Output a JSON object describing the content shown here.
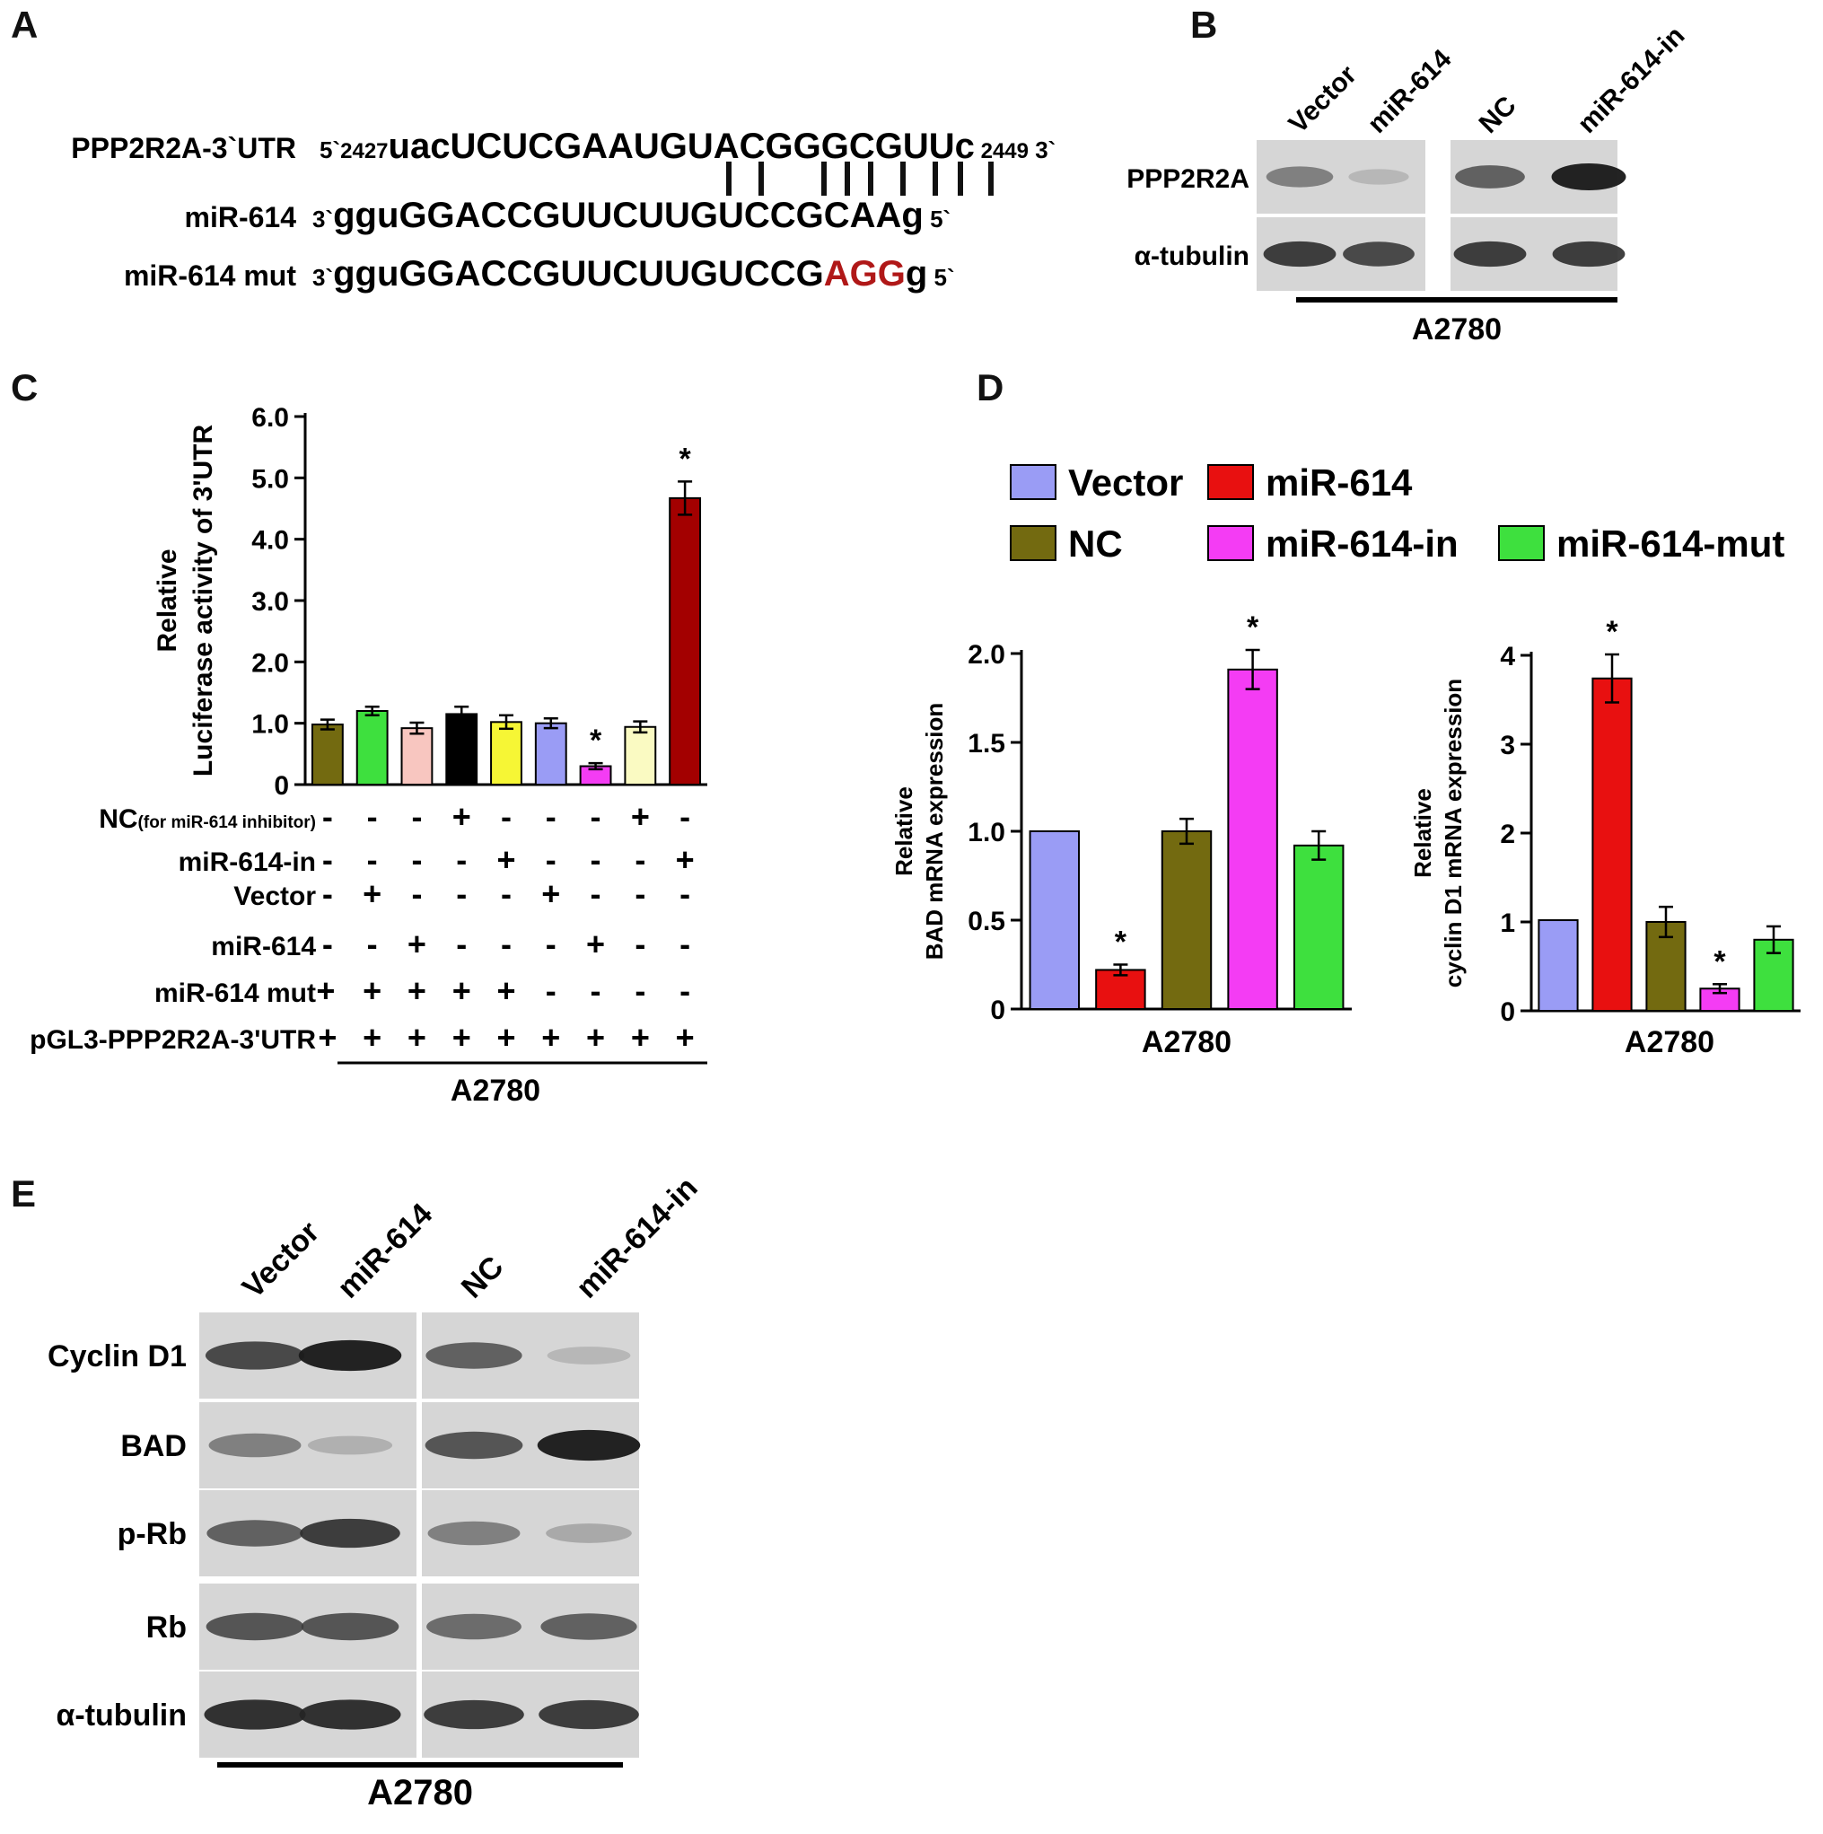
{
  "panels": {
    "A": {
      "label": "A",
      "rows": [
        {
          "name": "PPP2R2A-3`UTR",
          "prime_left": "5`",
          "pos_start": "2427",
          "seq_lower_prefix": "uac",
          "seq_upper": "UCUCGAAUGUACGGGCGUU",
          "seq_lower_suffix": "c",
          "pos_end": "2449",
          "prime_right": "3`"
        },
        {
          "name": "miR-614",
          "prime_left": "3`",
          "seq_lower_prefix": "ggu",
          "seq_upper": "GGACCGUUCUUGUCCGCAA",
          "seq_lower_suffix": "g",
          "prime_right": "5`"
        },
        {
          "name": "miR-614 mut",
          "prime_left": "3`",
          "seq_lower_prefix": "ggu",
          "seq_upper": "GGACCGUUCUUGUCCG",
          "seq_mut": "AGG",
          "seq_lower_suffix": "g",
          "prime_right": "5`"
        }
      ],
      "mut_color": "#b01818",
      "pair_count": 9
    },
    "B": {
      "label": "B",
      "lanes": [
        "Vector",
        "miR-614",
        "NC",
        "miR-614-in"
      ],
      "blots": [
        {
          "name": "PPP2R2A",
          "band_intensity": [
            0.55,
            0.2,
            0.7,
            0.95
          ]
        },
        {
          "name": "α-tubulin",
          "band_intensity": [
            0.85,
            0.8,
            0.85,
            0.85
          ]
        }
      ],
      "cell_line": "A2780"
    },
    "C": {
      "label": "C"
    },
    "D": {
      "label": "D"
    },
    "E": {
      "label": "E",
      "lanes": [
        "Vector",
        "miR-614",
        "NC",
        "miR-614-in"
      ],
      "blots": [
        {
          "name": "Cyclin D1",
          "band_intensity": [
            0.8,
            0.95,
            0.7,
            0.2
          ]
        },
        {
          "name": "BAD",
          "band_intensity": [
            0.55,
            0.25,
            0.75,
            0.95
          ]
        },
        {
          "name": "p-Rb",
          "band_intensity": [
            0.7,
            0.85,
            0.55,
            0.3
          ]
        },
        {
          "name": "Rb",
          "band_intensity": [
            0.75,
            0.75,
            0.65,
            0.7
          ]
        },
        {
          "name": "α-tubulin",
          "band_intensity": [
            0.9,
            0.9,
            0.85,
            0.85
          ]
        }
      ],
      "cell_line": "A2780"
    }
  },
  "chart_data": [
    {
      "panel": "C",
      "type": "bar",
      "title": "",
      "ylabel_line1": "Relative",
      "ylabel_line2": "Luciferase activity of 3'UTR",
      "ylim": [
        0,
        6.0
      ],
      "yticks": [
        "0",
        "1.0",
        "2.0",
        "3.0",
        "4.0",
        "5.0",
        "6.0"
      ],
      "values": [
        0.98,
        1.2,
        0.92,
        1.15,
        1.02,
        1.0,
        0.3,
        0.94,
        4.67
      ],
      "errors": [
        0.08,
        0.07,
        0.09,
        0.12,
        0.11,
        0.08,
        0.05,
        0.09,
        0.27
      ],
      "colors": [
        "#736a10",
        "#3ee03e",
        "#f8c6c0",
        "#000000",
        "#f6f635",
        "#9a9cf5",
        "#f43cf4",
        "#fafac2",
        "#a30000"
      ],
      "significance": [
        "",
        "",
        "",
        "",
        "",
        "",
        "*",
        "",
        "*"
      ],
      "condition_table": [
        {
          "label": "NC",
          "label_note": "(for miR-614 inhibitor)",
          "signs": [
            "-",
            "-",
            "-",
            "+",
            "-",
            "-",
            "-",
            "+",
            "-"
          ]
        },
        {
          "label": "miR-614-in",
          "signs": [
            "-",
            "-",
            "-",
            "-",
            "+",
            "-",
            "-",
            "-",
            "+"
          ]
        },
        {
          "label": "Vector",
          "signs": [
            "-",
            "+",
            "-",
            "-",
            "-",
            "+",
            "-",
            "-",
            "-"
          ]
        },
        {
          "label": "miR-614",
          "signs": [
            "-",
            "-",
            "+",
            "-",
            "-",
            "-",
            "+",
            "-",
            "-"
          ]
        },
        {
          "label": "miR-614 mut",
          "signs": [
            "+",
            "+",
            "+",
            "+",
            "+",
            "-",
            "-",
            "-",
            "-"
          ]
        },
        {
          "label": "pGL3-PPP2R2A-3'UTR",
          "signs": [
            "+",
            "+",
            "+",
            "+",
            "+",
            "+",
            "+",
            "+",
            "+"
          ]
        }
      ],
      "xlabel": "A2780"
    },
    {
      "panel": "D-left",
      "type": "bar",
      "categories": [
        "Vector",
        "miR-614",
        "NC",
        "miR-614-in",
        "miR-614-mut"
      ],
      "values": [
        1.0,
        0.22,
        1.0,
        1.91,
        0.92
      ],
      "errors": [
        0,
        0.03,
        0.07,
        0.11,
        0.08
      ],
      "significance": [
        "",
        "*",
        "",
        "*",
        ""
      ],
      "ylabel_line1": "Relative",
      "ylabel_line2": "BAD mRNA expression",
      "ylim": [
        0,
        2.0
      ],
      "yticks": [
        "0",
        "0.5",
        "1.0",
        "1.5",
        "2.0"
      ],
      "xlabel": "A2780"
    },
    {
      "panel": "D-right",
      "type": "bar",
      "categories": [
        "Vector",
        "miR-614",
        "NC",
        "miR-614-in",
        "miR-614-mut"
      ],
      "values": [
        1.02,
        3.74,
        1.0,
        0.25,
        0.8
      ],
      "errors": [
        0,
        0.27,
        0.17,
        0.05,
        0.15
      ],
      "significance": [
        "",
        "*",
        "",
        "*",
        ""
      ],
      "ylabel_line1": "Relative",
      "ylabel_line2": "cyclin D1 mRNA expression",
      "ylim": [
        0,
        4
      ],
      "yticks": [
        "0",
        "1",
        "2",
        "3",
        "4"
      ],
      "xlabel": "A2780"
    }
  ],
  "legend_D": [
    {
      "name": "Vector",
      "color": "#9a9cf5"
    },
    {
      "name": "miR-614",
      "color": "#e81010"
    },
    {
      "name": "NC",
      "color": "#736a10"
    },
    {
      "name": "miR-614-in",
      "color": "#f43cf4"
    },
    {
      "name": "miR-614-mut",
      "color": "#3ee03e"
    }
  ]
}
